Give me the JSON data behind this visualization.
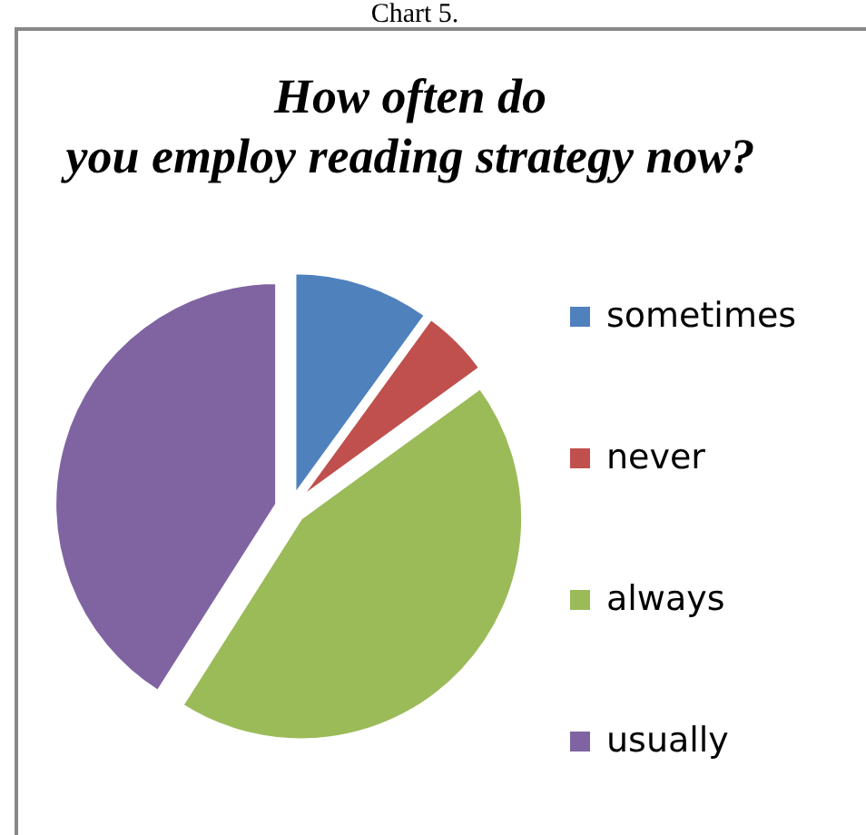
{
  "chart_data": {
    "type": "pie",
    "title": "How often do you employ reading strategy now?",
    "annotations": [
      "Chart 5."
    ],
    "categories": [
      "sometimes",
      "never",
      "always",
      "usually"
    ],
    "values": [
      10,
      5,
      44,
      41
    ],
    "colors": [
      "#4f81bd",
      "#c0504d",
      "#9bbb59",
      "#8064a2"
    ],
    "legend": "right"
  }
}
